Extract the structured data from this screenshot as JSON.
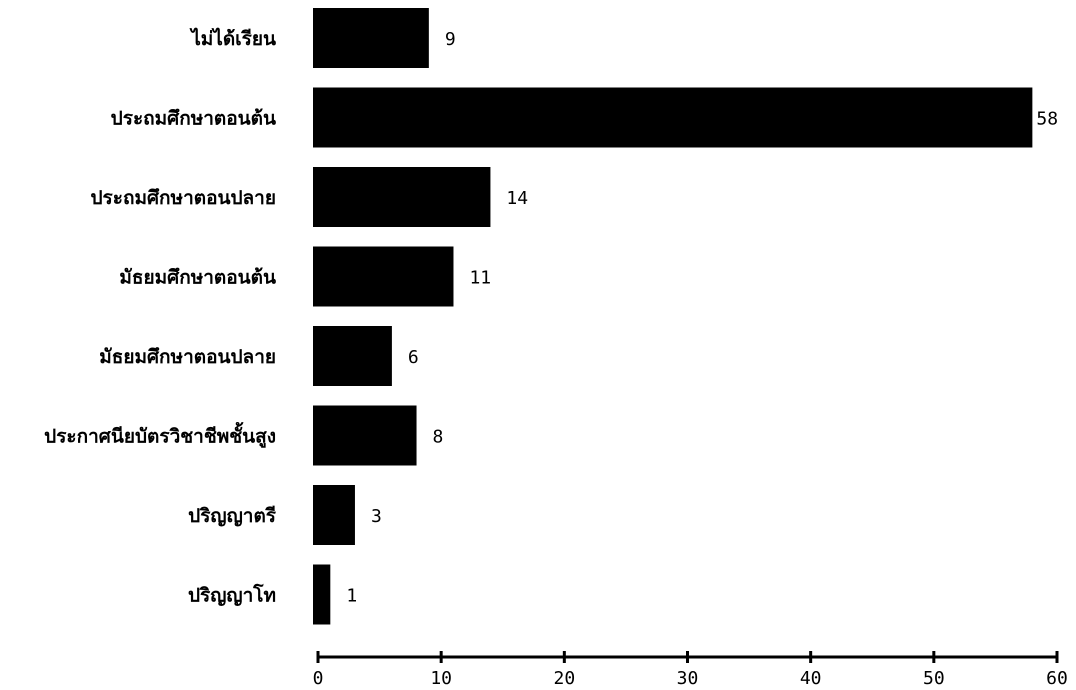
{
  "chart_data": {
    "type": "bar",
    "orientation": "horizontal",
    "categories": [
      "ไม่ได้เรียน",
      "ประถมศึกษาตอนต้น",
      "ประถมศึกษาตอนปลาย",
      "มัธยมศึกษาตอนต้น",
      "มัธยมศึกษาตอนปลาย",
      "ประกาศนียบัตรวิชาชีพชั้นสูง",
      "ปริญญาตรี",
      "ปริญญาโท"
    ],
    "values": [
      9,
      58,
      14,
      11,
      6,
      8,
      3,
      1
    ],
    "value_labels": [
      "9",
      "58",
      "14",
      "11",
      "6",
      "8",
      "3",
      "1"
    ],
    "xlim": [
      0,
      60
    ],
    "xticks": [
      "0",
      "10",
      "20",
      "30",
      "40",
      "50",
      "60"
    ],
    "bar_color": "#000000",
    "grid": false,
    "title": "",
    "xlabel": "",
    "ylabel": ""
  }
}
